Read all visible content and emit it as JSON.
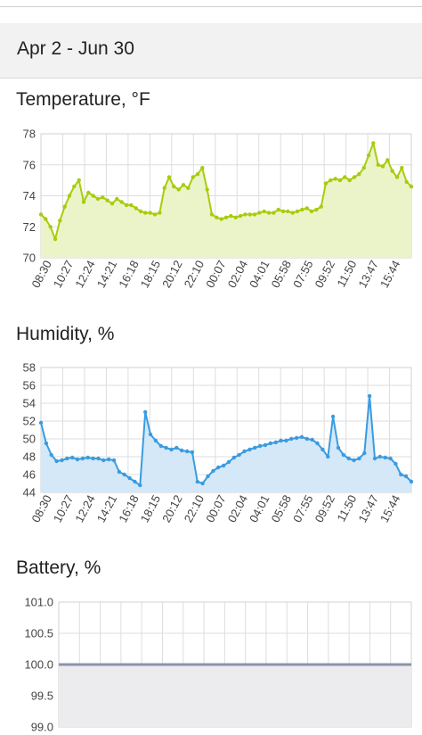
{
  "header": {
    "date_range": "Apr 2 - Jun 30"
  },
  "x_tick_labels": [
    "08:30",
    "10:27",
    "12:24",
    "14:21",
    "16:18",
    "18:15",
    "20:12",
    "22:10",
    "00:07",
    "02:04",
    "04:01",
    "05:58",
    "07:55",
    "09:52",
    "11:50",
    "13:47",
    "15:44"
  ],
  "chart_data": [
    {
      "type": "line",
      "title": "Temperature, °F",
      "color": "#a8cc0c",
      "fill": "#eaf4c8",
      "ylim": [
        70,
        78
      ],
      "y_ticks": [
        70,
        72,
        74,
        76,
        78
      ],
      "grid": true,
      "series": [
        {
          "values": [
            72.8,
            72.5,
            72.0,
            71.2,
            72.4,
            73.3,
            74.0,
            74.6,
            75.0,
            73.6,
            74.2,
            74.0,
            73.8,
            73.9,
            73.7,
            73.5,
            73.8,
            73.6,
            73.4,
            73.4,
            73.2,
            73.0,
            72.9,
            72.9,
            72.8,
            72.9,
            74.5,
            75.2,
            74.6,
            74.4,
            74.7,
            74.5,
            75.2,
            75.4,
            75.8,
            74.4,
            72.8,
            72.6,
            72.5,
            72.6,
            72.7,
            72.6,
            72.7,
            72.8,
            72.8,
            72.8,
            72.9,
            73.0,
            72.9,
            72.9,
            73.1,
            73.0,
            73.0,
            72.9,
            73.0,
            73.1,
            73.2,
            73.0,
            73.1,
            73.3,
            74.8,
            75.0,
            75.1,
            75.0,
            75.2,
            75.0,
            75.2,
            75.4,
            75.8,
            76.6,
            77.4,
            76.0,
            75.9,
            76.3,
            75.6,
            75.2,
            75.8,
            74.9,
            74.6
          ]
        }
      ]
    },
    {
      "type": "line",
      "title": "Humidity, %",
      "color": "#3a9be0",
      "fill": "#d4e8f8",
      "ylim": [
        44,
        58
      ],
      "y_ticks": [
        44,
        46,
        48,
        50,
        52,
        54,
        56,
        58
      ],
      "grid": true,
      "series": [
        {
          "values": [
            51.8,
            49.5,
            48.2,
            47.5,
            47.6,
            47.8,
            47.9,
            47.7,
            47.8,
            47.9,
            47.8,
            47.8,
            47.6,
            47.7,
            47.6,
            46.3,
            46.0,
            45.6,
            45.2,
            44.8,
            53.0,
            50.5,
            49.8,
            49.2,
            49.0,
            48.8,
            49.0,
            48.7,
            48.6,
            48.5,
            45.2,
            45.0,
            45.8,
            46.4,
            46.8,
            47.0,
            47.4,
            47.9,
            48.2,
            48.6,
            48.8,
            49.0,
            49.2,
            49.3,
            49.5,
            49.6,
            49.8,
            49.8,
            50.0,
            50.1,
            50.2,
            50.0,
            49.9,
            49.5,
            48.8,
            48.0,
            52.5,
            49.0,
            48.2,
            47.8,
            47.6,
            47.8,
            48.4,
            54.8,
            47.8,
            48.0,
            47.9,
            47.8,
            47.2,
            46.0,
            45.8,
            45.2
          ]
        }
      ]
    },
    {
      "type": "line",
      "title": "Battery, %",
      "color": "#8a95a8",
      "fill": "#ececef",
      "ylim": [
        99.0,
        101.0
      ],
      "y_ticks": [
        "99.0",
        "99.5",
        "100.0",
        "100.5",
        "101.0"
      ],
      "grid": true,
      "series": [
        {
          "values": [
            100.0,
            100.0
          ]
        }
      ]
    }
  ]
}
